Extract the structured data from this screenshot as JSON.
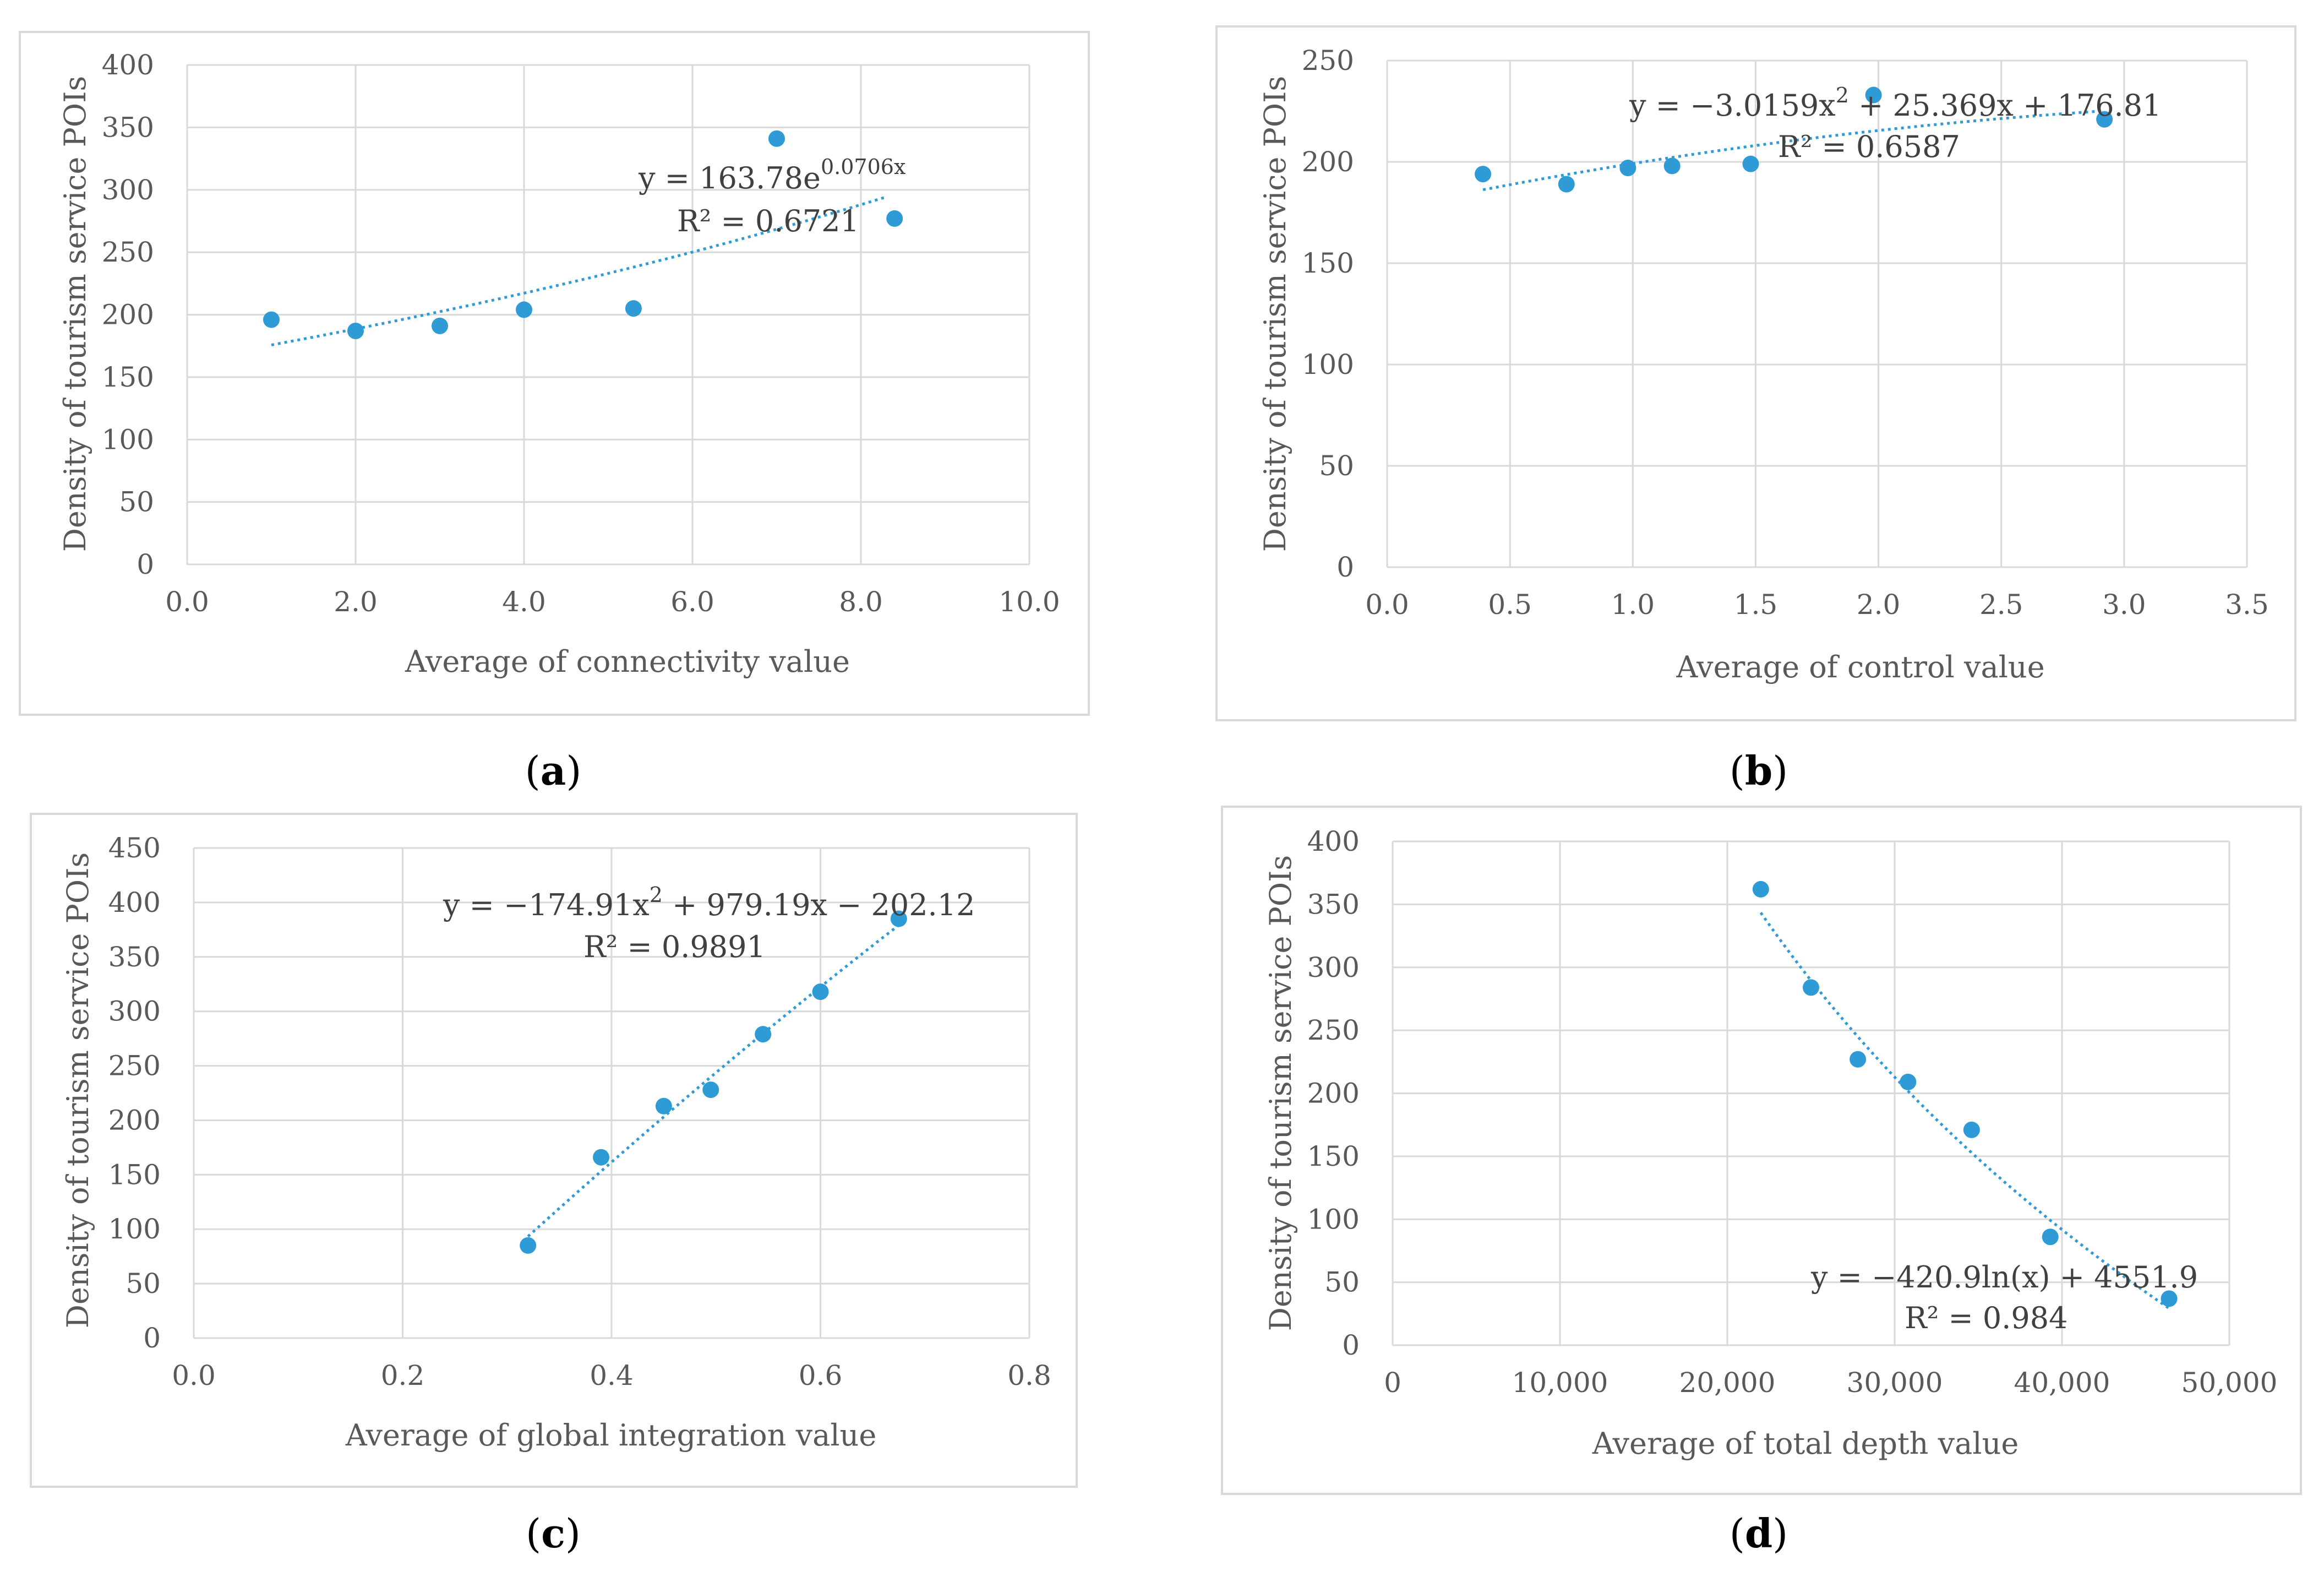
{
  "chart_data": [
    {
      "type": "scatter",
      "panel": "a",
      "xlabel": "Average of connectivity value",
      "ylabel": "Density of  tourism service POIs",
      "xlim": [
        0,
        10
      ],
      "ylim": [
        0,
        400
      ],
      "xticks": [
        0,
        2,
        4,
        6,
        8,
        10
      ],
      "xtick_labels": [
        "0.0",
        "2.0",
        "4.0",
        "6.0",
        "8.0",
        "10.0"
      ],
      "yticks": [
        0,
        50,
        100,
        150,
        200,
        250,
        300,
        350,
        400
      ],
      "ytick_labels": [
        "0",
        "50",
        "100",
        "150",
        "200",
        "250",
        "300",
        "350",
        "400"
      ],
      "points": [
        [
          1.0,
          196
        ],
        [
          2.0,
          187
        ],
        [
          3.0,
          191
        ],
        [
          4.0,
          204
        ],
        [
          5.3,
          205
        ],
        [
          7.0,
          341
        ],
        [
          8.4,
          277
        ]
      ],
      "trend": {
        "kind": "exp",
        "a": 163.78,
        "b": 0.0706,
        "x_range": [
          1.0,
          8.3
        ]
      },
      "equation": "y = 163.78e",
      "equation_sup": "0.0706x",
      "r2": "R² = 0.6721"
    },
    {
      "type": "scatter",
      "panel": "b",
      "xlabel": "Average of  control value",
      "ylabel": "Density of  tourism service POIs",
      "xlim": [
        0,
        3.5
      ],
      "ylim": [
        0,
        250
      ],
      "xticks": [
        0,
        0.5,
        1.0,
        1.5,
        2.0,
        2.5,
        3.0,
        3.5
      ],
      "xtick_labels": [
        "0.0",
        "0.5",
        "1.0",
        "1.5",
        "2.0",
        "2.5",
        "3.0",
        "3.5"
      ],
      "yticks": [
        0,
        50,
        100,
        150,
        200,
        250
      ],
      "ytick_labels": [
        "0",
        "50",
        "100",
        "150",
        "200",
        "250"
      ],
      "points": [
        [
          0.39,
          194
        ],
        [
          0.73,
          189
        ],
        [
          0.98,
          197
        ],
        [
          1.16,
          198
        ],
        [
          1.48,
          199
        ],
        [
          1.98,
          233
        ],
        [
          2.92,
          221
        ]
      ],
      "trend": {
        "kind": "poly2",
        "a": -3.0159,
        "b": 25.369,
        "c": 176.81,
        "x_range": [
          0.39,
          2.92
        ]
      },
      "equation": "y = −3.0159x",
      "equation_sup": "2",
      "equation_tail": " + 25.369x + 176.81",
      "r2": "R² = 0.6587"
    },
    {
      "type": "scatter",
      "panel": "c",
      "xlabel": "Average of  global integration value",
      "ylabel": "Density of  tourism service POIs",
      "xlim": [
        0,
        0.8
      ],
      "ylim": [
        0,
        450
      ],
      "xticks": [
        0,
        0.2,
        0.4,
        0.6,
        0.8
      ],
      "xtick_labels": [
        "0.0",
        "0.2",
        "0.4",
        "0.6",
        "0.8"
      ],
      "yticks": [
        0,
        50,
        100,
        150,
        200,
        250,
        300,
        350,
        400,
        450
      ],
      "ytick_labels": [
        "0",
        "50",
        "100",
        "150",
        "200",
        "250",
        "300",
        "350",
        "400",
        "450"
      ],
      "points": [
        [
          0.32,
          85
        ],
        [
          0.39,
          166
        ],
        [
          0.45,
          213
        ],
        [
          0.495,
          228
        ],
        [
          0.545,
          279
        ],
        [
          0.6,
          318
        ],
        [
          0.675,
          385
        ]
      ],
      "trend": {
        "kind": "poly2",
        "a": -174.91,
        "b": 979.19,
        "c": -202.12,
        "x_range": [
          0.32,
          0.675
        ]
      },
      "equation": "y = −174.91x",
      "equation_sup": "2",
      "equation_tail": " + 979.19x − 202.12",
      "r2": "R² = 0.9891"
    },
    {
      "type": "scatter",
      "panel": "d",
      "xlabel": "Average of  total depth  value",
      "ylabel": "Density of  tourism service POIs",
      "xlim": [
        0,
        50000
      ],
      "ylim": [
        0,
        400
      ],
      "xticks": [
        0,
        10000,
        20000,
        30000,
        40000,
        50000
      ],
      "xtick_labels": [
        "0",
        "10,000",
        "20,000",
        "30,000",
        "40,000",
        "50,000"
      ],
      "yticks": [
        0,
        50,
        100,
        150,
        200,
        250,
        300,
        350,
        400
      ],
      "ytick_labels": [
        "0",
        "50",
        "100",
        "150",
        "200",
        "250",
        "300",
        "350",
        "400"
      ],
      "points": [
        [
          22000,
          362
        ],
        [
          25000,
          284
        ],
        [
          27800,
          227
        ],
        [
          30800,
          209
        ],
        [
          34600,
          171
        ],
        [
          39300,
          86
        ],
        [
          46400,
          37
        ]
      ],
      "trend": {
        "kind": "log",
        "a": -420.9,
        "b": 4551.9,
        "x_range": [
          22000,
          46400
        ]
      },
      "equation": "y = −420.9ln(x) + 4551.9",
      "r2": "R² = 0.984"
    }
  ],
  "labels": {
    "a": {
      "open": "(",
      "letter": "a",
      "close": ")"
    },
    "b": {
      "open": "(",
      "letter": "b",
      "close": ")"
    },
    "c": {
      "open": "(",
      "letter": "c",
      "close": ")"
    },
    "d": {
      "open": "(",
      "letter": "d",
      "close": ")"
    }
  },
  "colors": {
    "point": "#2E9BD6",
    "trend": "#2E9BD6",
    "grid": "#D9D9D9",
    "border": "#D9D9D9",
    "text": "#595959"
  }
}
